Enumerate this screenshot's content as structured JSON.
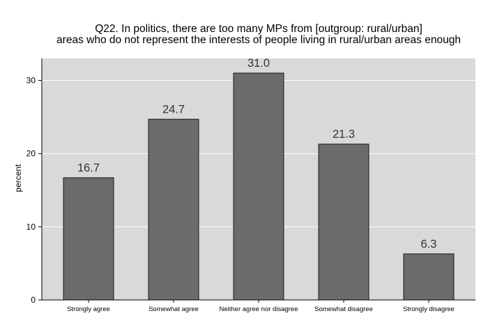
{
  "chart_data": {
    "type": "bar",
    "title_lines": [
      "Q22. In politics, there are too many MPs from [outgroup: rural/urban]",
      "areas who do not represent the interests of people living in rural/urban areas enough"
    ],
    "ylabel": "percent",
    "categories": [
      "Strongly agree",
      "Somewhat agree",
      "Neither agree nor disagree",
      "Somewhat disagree",
      "Strongly disagree"
    ],
    "values": [
      16.7,
      24.7,
      31.0,
      21.3,
      6.3
    ],
    "value_labels": [
      "16.7",
      "24.7",
      "31.0",
      "21.3",
      "6.3"
    ],
    "ylim": [
      0,
      33
    ],
    "yticks": [
      0,
      10,
      20,
      30
    ],
    "grid": true,
    "colors": {
      "plot_background": "#d9d9d9",
      "bar_fill": "#6b6b6b",
      "bar_stroke": "#1a1a1a",
      "grid": "#ffffff",
      "value_label": "#333333"
    }
  }
}
